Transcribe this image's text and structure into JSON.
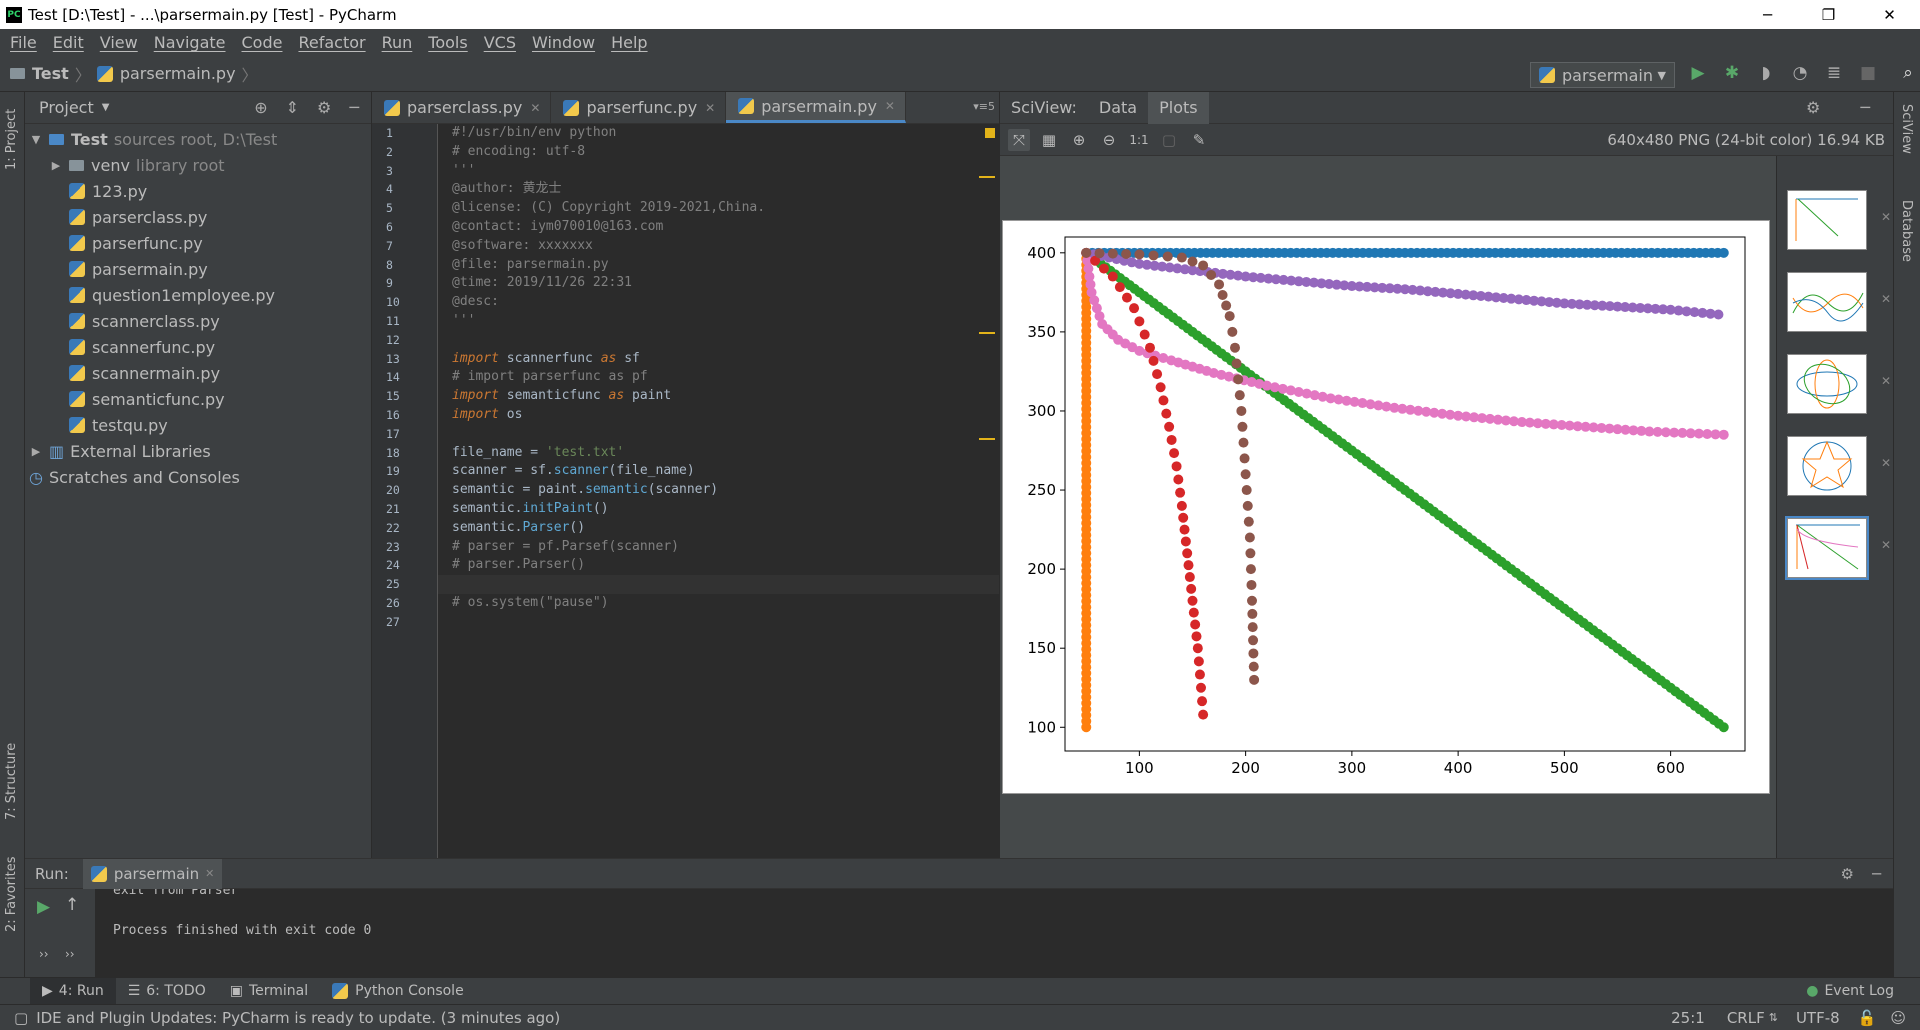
{
  "window": {
    "title": "Test [D:\\Test] - ...\\parsermain.py [Test] - PyCharm",
    "app_icon": "PC",
    "minimize": "─",
    "restore": "❐",
    "close": "✕"
  },
  "menu": [
    "File",
    "Edit",
    "View",
    "Navigate",
    "Code",
    "Refactor",
    "Run",
    "Tools",
    "VCS",
    "Window",
    "Help"
  ],
  "breadcrumb": {
    "project": "Test",
    "file": "parsermain.py"
  },
  "run_config": {
    "name": "parsermain"
  },
  "project_panel": {
    "title": "Project",
    "items": [
      {
        "label": "Test",
        "extra": "sources root,  D:\\Test",
        "type": "root"
      },
      {
        "label": "venv",
        "extra": "library root",
        "type": "folder"
      },
      {
        "label": "123.py",
        "type": "py"
      },
      {
        "label": "parserclass.py",
        "type": "py"
      },
      {
        "label": "parserfunc.py",
        "type": "py"
      },
      {
        "label": "parsermain.py",
        "type": "py"
      },
      {
        "label": "question1employee.py",
        "type": "py"
      },
      {
        "label": "scannerclass.py",
        "type": "py"
      },
      {
        "label": "scannerfunc.py",
        "type": "py"
      },
      {
        "label": "scannermain.py",
        "type": "py"
      },
      {
        "label": "semanticfunc.py",
        "type": "py"
      },
      {
        "label": "testqu.py",
        "type": "py"
      },
      {
        "label": "External Libraries",
        "type": "lib"
      },
      {
        "label": "Scratches and Consoles",
        "type": "scratch"
      }
    ]
  },
  "editor_tabs": [
    {
      "label": "parserclass.py",
      "active": false
    },
    {
      "label": "parserfunc.py",
      "active": false
    },
    {
      "label": "parsermain.py",
      "active": true
    }
  ],
  "editor_tab_count": "5",
  "code_lines": [
    "#!/usr/bin/env python",
    "# encoding: utf-8",
    "'''",
    "@author: 黄龙士",
    "@license: (C) Copyright 2019-2021,China.",
    "@contact: iym070010@163.com",
    "@software: xxxxxxx",
    "@file: parsermain.py",
    "@time: 2019/11/26 22:31",
    "@desc:",
    "'''",
    "",
    "import scannerfunc as sf",
    "# import parserfunc as pf",
    "import semanticfunc as paint",
    "import os",
    "",
    "file_name = 'test.txt'",
    "scanner = sf.scanner(file_name)",
    "semantic = paint.semantic(scanner)",
    "semantic.initPaint()",
    "semantic.Parser()",
    "# parser = pf.Parsef(scanner)",
    "# parser.Parser()",
    "",
    "# os.system(\"pause\")",
    ""
  ],
  "sciview": {
    "title": "SciView:",
    "tabs": [
      "Data",
      "Plots"
    ],
    "image_info": "640x480 PNG (24-bit color) 16.94 KB"
  },
  "chart_data": {
    "type": "scatter",
    "xlim": [
      30,
      670
    ],
    "ylim": [
      85,
      410
    ],
    "xticks": [
      100,
      200,
      300,
      400,
      500,
      600
    ],
    "yticks": [
      100,
      150,
      200,
      250,
      300,
      350,
      400
    ],
    "series": [
      {
        "color": "#1f77b4",
        "kind": "hline",
        "y": 400,
        "x_start": 50,
        "x_end": 650
      },
      {
        "color": "#ff7f0e",
        "kind": "vline",
        "x": 50,
        "y_start": 100,
        "y_end": 400
      },
      {
        "color": "#2ca02c",
        "kind": "line",
        "x": [
          50,
          650
        ],
        "y": [
          400,
          100
        ]
      },
      {
        "color": "#9467bd",
        "points": [
          [
            50,
            400
          ],
          [
            100,
            393
          ],
          [
            150,
            389
          ],
          [
            200,
            385
          ],
          [
            250,
            382
          ],
          [
            300,
            379
          ],
          [
            350,
            377
          ],
          [
            400,
            374
          ],
          [
            450,
            371
          ],
          [
            500,
            368
          ],
          [
            550,
            366
          ],
          [
            600,
            364
          ],
          [
            645,
            361
          ]
        ]
      },
      {
        "color": "#e377c2",
        "points": [
          [
            50,
            400
          ],
          [
            55,
            375
          ],
          [
            65,
            355
          ],
          [
            80,
            345
          ],
          [
            100,
            338
          ],
          [
            130,
            332
          ],
          [
            170,
            324
          ],
          [
            220,
            316
          ],
          [
            280,
            308
          ],
          [
            340,
            302
          ],
          [
            400,
            297
          ],
          [
            460,
            293
          ],
          [
            520,
            290
          ],
          [
            580,
            287
          ],
          [
            650,
            285
          ]
        ]
      },
      {
        "color": "#d62728",
        "points": [
          [
            50,
            400
          ],
          [
            75,
            385
          ],
          [
            95,
            365
          ],
          [
            110,
            340
          ],
          [
            120,
            315
          ],
          [
            128,
            290
          ],
          [
            135,
            265
          ],
          [
            140,
            240
          ],
          [
            145,
            210
          ],
          [
            150,
            180
          ],
          [
            155,
            150
          ],
          [
            158,
            125
          ],
          [
            160,
            108
          ]
        ]
      },
      {
        "color": "#8c564b",
        "points": [
          [
            50,
            400
          ],
          [
            100,
            399
          ],
          [
            140,
            397
          ],
          [
            160,
            392
          ],
          [
            175,
            380
          ],
          [
            185,
            360
          ],
          [
            190,
            340
          ],
          [
            193,
            320
          ],
          [
            196,
            300
          ],
          [
            198,
            280
          ],
          [
            200,
            260
          ],
          [
            202,
            240
          ],
          [
            204,
            220
          ],
          [
            205,
            200
          ],
          [
            206,
            180
          ],
          [
            207,
            155
          ],
          [
            208,
            130
          ]
        ]
      }
    ]
  },
  "thumbnails": [
    "plot-1",
    "plot-2",
    "plot-3",
    "plot-4",
    "plot-5"
  ],
  "run_panel": {
    "label": "Run:",
    "tab": "parsermain",
    "output_lines": [
      "exit from Parser",
      "",
      "Process finished with exit code 0"
    ]
  },
  "bottom_tabs": [
    "4: Run",
    "6: TODO",
    "Terminal",
    "Python Console"
  ],
  "event_log": "Event Log",
  "status": {
    "message": "IDE and Plugin Updates: PyCharm is ready to update. (3 minutes ago)",
    "position": "25:1",
    "line_sep": "CRLF",
    "encoding": "UTF-8"
  },
  "left_stripe": [
    "1: Project",
    "7: Structure",
    "2: Favorites"
  ],
  "right_stripe": [
    "SciView",
    "Database"
  ]
}
